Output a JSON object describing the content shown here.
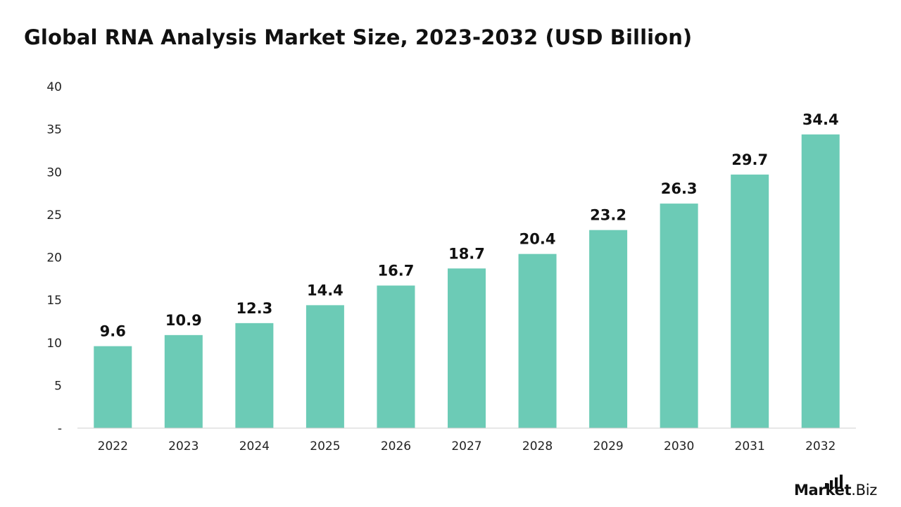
{
  "chart_data": {
    "type": "bar",
    "title": "Global RNA Analysis Market Size, 2023-2032 (USD Billion)",
    "categories": [
      "2022",
      "2023",
      "2024",
      "2025",
      "2026",
      "2027",
      "2028",
      "2029",
      "2030",
      "2031",
      "2032"
    ],
    "values": [
      9.6,
      10.9,
      12.3,
      14.4,
      16.7,
      18.7,
      20.4,
      23.2,
      26.3,
      29.7,
      34.4
    ],
    "data_labels": [
      "9.6",
      "10.9",
      "12.3",
      "14.4",
      "16.7",
      "18.7",
      "20.4",
      "23.2",
      "26.3",
      "29.7",
      "34.4"
    ],
    "ylim": [
      0,
      40
    ],
    "yticks": [
      0,
      5,
      10,
      15,
      20,
      25,
      30,
      35,
      40
    ],
    "ytick_labels": [
      "-",
      "5",
      "10",
      "15",
      "20",
      "25",
      "30",
      "35",
      "40"
    ],
    "xlabel": "",
    "ylabel": "",
    "grid": false,
    "bar_color": "#6ccbb6"
  },
  "brand": {
    "name_bold": "Market",
    "name_light": ".Biz",
    "icon": "bar-signal-icon"
  }
}
